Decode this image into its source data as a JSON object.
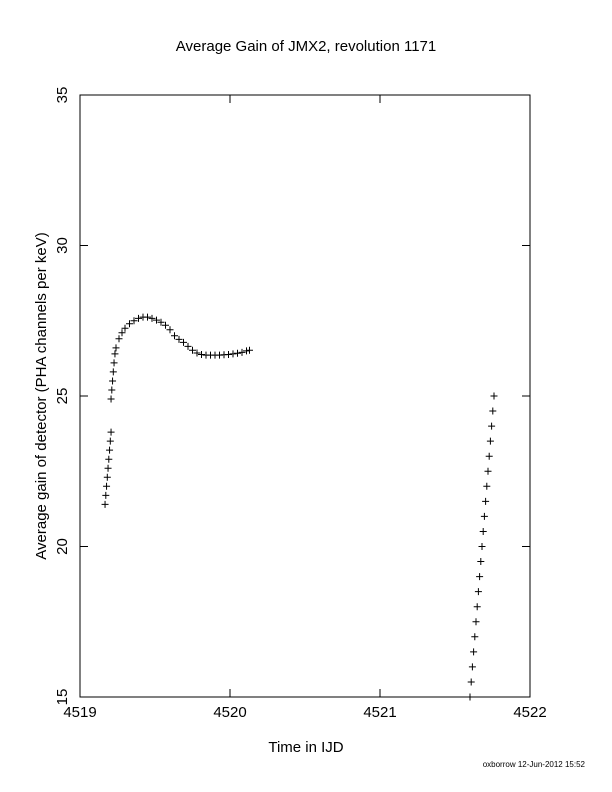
{
  "chart_data": {
    "type": "scatter",
    "title": "Average Gain of JMX2, revolution 1171",
    "x_label": "Time in IJD",
    "y_label": "Average gain of detector (PHA channels per keV)",
    "footer": "oxborrow 12-Jun-2012 15:52",
    "xlim": [
      4519,
      4522
    ],
    "xticks": [
      4519,
      4520,
      4521,
      4522
    ],
    "ylim": [
      15,
      35
    ],
    "yticks": [
      15,
      20,
      25,
      30,
      35
    ],
    "marker": "+",
    "color": "#000000",
    "x": [
      4519.167,
      4519.172,
      4519.177,
      4519.182,
      4519.187,
      4519.192,
      4519.197,
      4519.202,
      4519.207,
      4519.207,
      4519.212,
      4519.217,
      4519.222,
      4519.227,
      4519.233,
      4519.24,
      4519.26,
      4519.28,
      4519.3,
      4519.33,
      4519.36,
      4519.39,
      4519.42,
      4519.45,
      4519.48,
      4519.51,
      4519.54,
      4519.57,
      4519.6,
      4519.63,
      4519.66,
      4519.69,
      4519.72,
      4519.75,
      4519.78,
      4519.81,
      4519.84,
      4519.87,
      4519.9,
      4519.93,
      4519.96,
      4519.99,
      4520.02,
      4520.05,
      4520.08,
      4520.11,
      4520.13,
      4521.6,
      4521.608,
      4521.616,
      4521.624,
      4521.632,
      4521.64,
      4521.648,
      4521.656,
      4521.664,
      4521.672,
      4521.68,
      4521.688,
      4521.696,
      4521.704,
      4521.712,
      4521.72,
      4521.728,
      4521.736,
      4521.744,
      4521.752,
      4521.76
    ],
    "values": [
      21.4,
      21.7,
      22.0,
      22.3,
      22.6,
      22.9,
      23.2,
      23.5,
      23.8,
      24.9,
      25.2,
      25.5,
      25.8,
      26.1,
      26.4,
      26.6,
      26.9,
      27.1,
      27.25,
      27.4,
      27.5,
      27.58,
      27.62,
      27.62,
      27.58,
      27.52,
      27.45,
      27.35,
      27.2,
      27.0,
      26.88,
      26.78,
      26.65,
      26.52,
      26.43,
      26.38,
      26.36,
      26.36,
      26.36,
      26.36,
      26.37,
      26.38,
      26.4,
      26.42,
      26.45,
      26.5,
      26.52,
      15.0,
      15.5,
      16.0,
      16.5,
      17.0,
      17.5,
      18.0,
      18.5,
      19.0,
      19.5,
      20.0,
      20.5,
      21.0,
      21.5,
      22.0,
      22.5,
      23.0,
      23.5,
      24.0,
      24.5,
      25.0
    ]
  }
}
